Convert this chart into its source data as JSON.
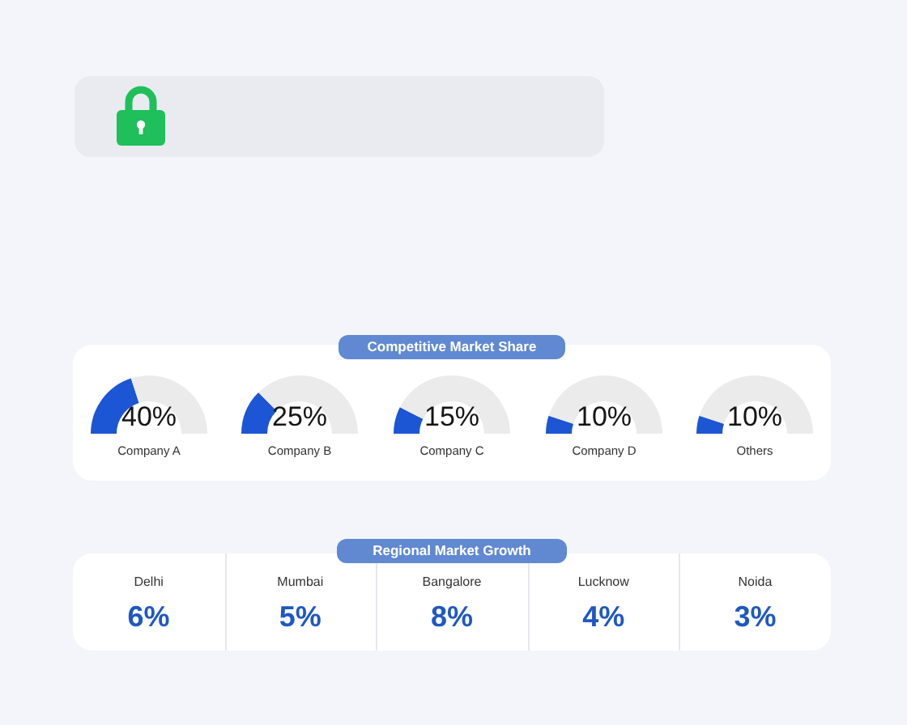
{
  "chart_data": [
    {
      "type": "other",
      "title": "Competitive Market Share"
    },
    {
      "type": "donut",
      "title": "Company A",
      "categories": [
        null,
        null
      ],
      "values": [
        40,
        60
      ],
      "colors": [
        "#1c56d4",
        "#ebebeb"
      ],
      "annotations": [
        "40%"
      ]
    },
    {
      "type": "donut",
      "title": "Company B",
      "categories": [
        null,
        null
      ],
      "values": [
        25,
        75
      ],
      "colors": [
        "#1c56d4",
        "#ebebeb"
      ],
      "annotations": [
        "25%"
      ]
    },
    {
      "type": "donut",
      "title": "Company C",
      "categories": [
        null,
        null
      ],
      "values": [
        15,
        85
      ],
      "colors": [
        "#1c56d4",
        "#ebebeb"
      ],
      "annotations": [
        "15%"
      ]
    },
    {
      "type": "donut",
      "title": "Company D",
      "categories": [
        null,
        null
      ],
      "values": [
        10,
        90
      ],
      "colors": [
        "#1c56d4",
        "#ebebeb"
      ],
      "annotations": [
        "10%"
      ]
    },
    {
      "type": "donut",
      "title": "Others",
      "categories": [
        null,
        null
      ],
      "values": [
        10,
        90
      ],
      "colors": [
        "#1c56d4",
        "#ebebeb"
      ],
      "annotations": [
        "10%"
      ]
    },
    {
      "type": "other",
      "title": "Regional Market Growth",
      "categories": [
        "Delhi",
        "Mumbai",
        "Bangalore",
        "Lucknow",
        "Noida"
      ],
      "values": [
        6,
        5,
        8,
        4,
        3
      ],
      "value_labels": [
        "6%",
        "5%",
        "8%",
        "4%",
        "3%"
      ]
    }
  ]
}
